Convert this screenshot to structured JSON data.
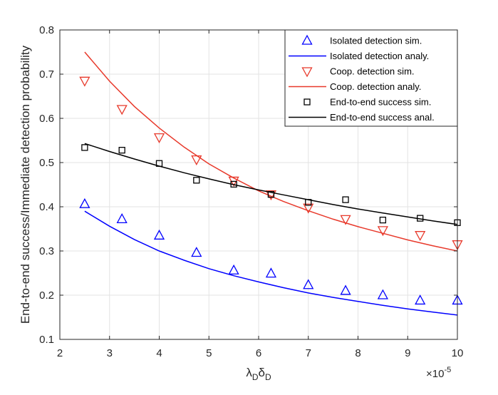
{
  "chart_data": {
    "type": "line",
    "title": "",
    "xlabel": "λ_D δ_D",
    "xlabel_parts": {
      "lambda": "λ",
      "sub1": "D",
      "delta": "δ",
      "sub2": "D"
    },
    "ylabel": "End-to-end success/Immediate detection probability",
    "x_exponent": {
      "base": "×10",
      "power": "-5"
    },
    "xlim": [
      2,
      10
    ],
    "ylim": [
      0.1,
      0.8
    ],
    "x_ticks": [
      2,
      3,
      4,
      5,
      6,
      7,
      8,
      9,
      10
    ],
    "y_ticks": [
      0.1,
      0.2,
      0.3,
      0.4,
      0.5,
      0.6,
      0.7,
      0.8
    ],
    "x_tick_labels": [
      "2",
      "3",
      "4",
      "5",
      "6",
      "7",
      "8",
      "9",
      "10"
    ],
    "y_tick_labels": [
      "0.1",
      "0.2",
      "0.3",
      "0.4",
      "0.5",
      "0.6",
      "0.7",
      "0.8"
    ],
    "grid": true,
    "legend_position": "top-right",
    "series": [
      {
        "name": "Isolated detection sim.",
        "kind": "markers",
        "marker": "triangle-up",
        "color": "#0000ff",
        "x": [
          2.5,
          3.25,
          4.0,
          4.75,
          5.5,
          6.25,
          7.0,
          7.75,
          8.5,
          9.25,
          10.0
        ],
        "y": [
          0.406,
          0.372,
          0.335,
          0.296,
          0.256,
          0.249,
          0.223,
          0.21,
          0.2,
          0.188,
          0.188
        ]
      },
      {
        "name": "Isolated detection analy.",
        "kind": "line",
        "color": "#0000ff",
        "x": [
          2.5,
          3.0,
          3.5,
          4.0,
          4.5,
          5.0,
          5.5,
          6.0,
          6.5,
          7.0,
          7.5,
          8.0,
          8.5,
          9.0,
          9.5,
          10.0
        ],
        "y": [
          0.39,
          0.356,
          0.326,
          0.3,
          0.279,
          0.26,
          0.244,
          0.23,
          0.217,
          0.205,
          0.195,
          0.186,
          0.177,
          0.169,
          0.162,
          0.155
        ]
      },
      {
        "name": "Coop. detection sim.",
        "kind": "markers",
        "marker": "triangle-down",
        "color": "#e8392b",
        "x": [
          2.5,
          3.25,
          4.0,
          4.75,
          5.5,
          6.25,
          7.0,
          7.75,
          8.5,
          9.25,
          10.0
        ],
        "y": [
          0.685,
          0.621,
          0.557,
          0.507,
          0.459,
          0.428,
          0.398,
          0.372,
          0.347,
          0.336,
          0.315
        ]
      },
      {
        "name": "Coop. detection analy.",
        "kind": "line",
        "color": "#e8392b",
        "x": [
          2.5,
          3.0,
          3.5,
          4.0,
          4.5,
          5.0,
          5.5,
          6.0,
          6.5,
          7.0,
          7.5,
          8.0,
          8.5,
          9.0,
          9.5,
          10.0
        ],
        "y": [
          0.75,
          0.684,
          0.627,
          0.578,
          0.535,
          0.497,
          0.465,
          0.436,
          0.412,
          0.391,
          0.372,
          0.355,
          0.34,
          0.325,
          0.312,
          0.3
        ]
      },
      {
        "name": "End-to-end success sim.",
        "kind": "markers",
        "marker": "square",
        "color": "#000000",
        "x": [
          2.5,
          3.25,
          4.0,
          4.75,
          5.5,
          6.25,
          7.0,
          7.75,
          8.5,
          9.25,
          10.0
        ],
        "y": [
          0.534,
          0.528,
          0.498,
          0.46,
          0.451,
          0.428,
          0.41,
          0.416,
          0.37,
          0.374,
          0.364
        ]
      },
      {
        "name": "End-to-end success anal.",
        "kind": "line",
        "color": "#000000",
        "x": [
          2.5,
          3.0,
          3.5,
          4.0,
          4.5,
          5.0,
          5.5,
          6.0,
          6.5,
          7.0,
          7.5,
          8.0,
          8.5,
          9.0,
          9.5,
          10.0
        ],
        "y": [
          0.543,
          0.525,
          0.508,
          0.492,
          0.477,
          0.463,
          0.45,
          0.438,
          0.427,
          0.416,
          0.405,
          0.395,
          0.386,
          0.377,
          0.368,
          0.36
        ]
      }
    ]
  }
}
